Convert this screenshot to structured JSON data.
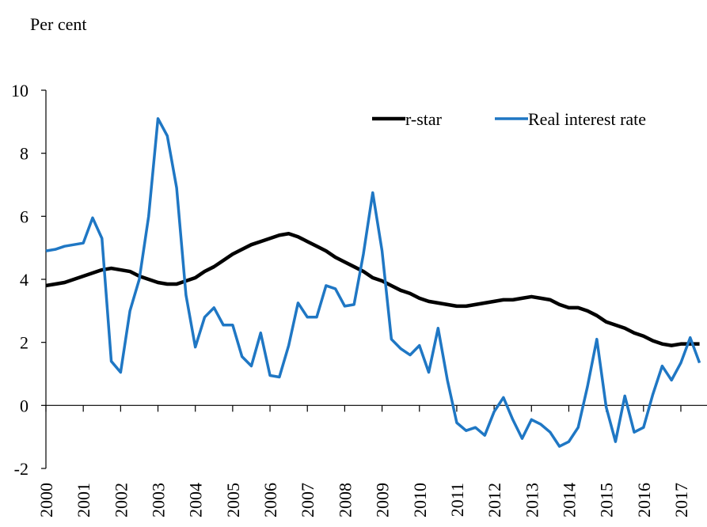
{
  "chart_data": {
    "type": "line",
    "y_label": "Per cent",
    "x": [
      2000,
      2000.25,
      2000.5,
      2000.75,
      2001,
      2001.25,
      2001.5,
      2001.75,
      2002,
      2002.25,
      2002.5,
      2002.75,
      2003,
      2003.25,
      2003.5,
      2003.75,
      2004,
      2004.25,
      2004.5,
      2004.75,
      2005,
      2005.25,
      2005.5,
      2005.75,
      2006,
      2006.25,
      2006.5,
      2006.75,
      2007,
      2007.25,
      2007.5,
      2007.75,
      2008,
      2008.25,
      2008.5,
      2008.75,
      2009,
      2009.25,
      2009.5,
      2009.75,
      2010,
      2010.25,
      2010.5,
      2010.75,
      2011,
      2011.25,
      2011.5,
      2011.75,
      2012,
      2012.25,
      2012.5,
      2012.75,
      2013,
      2013.25,
      2013.5,
      2013.75,
      2014,
      2014.25,
      2014.5,
      2014.75,
      2015,
      2015.25,
      2015.5,
      2015.75,
      2016,
      2016.25,
      2016.5,
      2016.75,
      2017,
      2017.25,
      2017.5
    ],
    "series": [
      {
        "name": "r-star",
        "color": "#000000",
        "values": [
          3.8,
          3.85,
          3.9,
          4.0,
          4.1,
          4.2,
          4.3,
          4.35,
          4.3,
          4.25,
          4.1,
          4.0,
          3.9,
          3.85,
          3.85,
          3.95,
          4.05,
          4.25,
          4.4,
          4.6,
          4.8,
          4.95,
          5.1,
          5.2,
          5.3,
          5.4,
          5.45,
          5.35,
          5.2,
          5.05,
          4.9,
          4.7,
          4.55,
          4.4,
          4.25,
          4.05,
          3.95,
          3.8,
          3.65,
          3.55,
          3.4,
          3.3,
          3.25,
          3.2,
          3.15,
          3.15,
          3.2,
          3.25,
          3.3,
          3.35,
          3.35,
          3.4,
          3.45,
          3.4,
          3.35,
          3.2,
          3.1,
          3.1,
          3.0,
          2.85,
          2.65,
          2.55,
          2.45,
          2.3,
          2.2,
          2.05,
          1.95,
          1.9,
          1.95,
          1.95,
          1.95
        ]
      },
      {
        "name": "Real interest rate",
        "color": "#1f77c4",
        "values": [
          4.9,
          4.95,
          5.05,
          5.1,
          5.15,
          5.95,
          5.3,
          1.4,
          1.05,
          3.0,
          4.0,
          6.0,
          9.1,
          8.55,
          6.9,
          3.5,
          1.85,
          2.8,
          3.1,
          2.55,
          2.55,
          1.55,
          1.25,
          2.3,
          0.95,
          0.9,
          1.9,
          3.25,
          2.8,
          2.8,
          3.8,
          3.7,
          3.15,
          3.2,
          4.8,
          6.75,
          4.9,
          2.1,
          1.8,
          1.6,
          1.9,
          1.05,
          2.45,
          0.8,
          -0.55,
          -0.8,
          -0.7,
          -0.95,
          -0.2,
          0.25,
          -0.45,
          -1.05,
          -0.45,
          -0.6,
          -0.85,
          -1.3,
          -1.15,
          -0.7,
          0.6,
          2.1,
          -0.05,
          -1.15,
          0.3,
          -0.85,
          -0.7,
          0.35,
          1.25,
          0.8,
          1.35,
          2.15,
          1.35
        ]
      }
    ],
    "xlim": [
      2000,
      2017.7
    ],
    "xticks": [
      2000,
      2001,
      2002,
      2003,
      2004,
      2005,
      2006,
      2007,
      2008,
      2009,
      2010,
      2011,
      2012,
      2013,
      2014,
      2015,
      2016,
      2017
    ],
    "ylim": [
      -2,
      10
    ],
    "yticks": [
      -2,
      0,
      2,
      4,
      6,
      8,
      10
    ],
    "grid": false,
    "legend": "upper right"
  }
}
